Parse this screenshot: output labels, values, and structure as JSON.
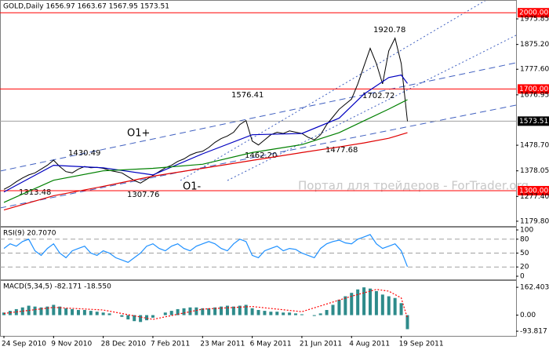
{
  "watermark": "Портал для трейдеров - ForTrader.org",
  "chart_data": [
    {
      "type": "line",
      "title": "GOLD,Daily  1656.97 1663.67 1567.95 1573.51",
      "xlim": [
        -0.63,
        82.5
      ],
      "ylim": [
        1161,
        2050
      ],
      "yticks": [
        1975.85,
        {
          "value": 1875.2,
          "label": "1875.20"
        },
        {
          "value": 1777.6,
          "label": "1777.60"
        },
        1676.95,
        {
          "value": 1478.7,
          "label": "1478.70"
        },
        1378.05,
        {
          "value": 1277.4,
          "label": "1277.40"
        },
        {
          "value": 1179.8,
          "label": "1179.80"
        }
      ],
      "levels": [
        {
          "value": 2000,
          "label": "2000.00",
          "color": "#ff0000"
        },
        {
          "value": 1700,
          "label": "1700.00",
          "color": "#ff0000"
        },
        {
          "value": 1573.51,
          "label": "1573.51",
          "color": "#a0a0a0"
        },
        {
          "value": 1300,
          "label": "1300.00",
          "color": "#ff0000"
        }
      ],
      "annotations": [
        "1920.78",
        "1702.72",
        "1576.41",
        "1462.20",
        "1477.68",
        "1430.49",
        "1313.48",
        "1307.76",
        "O1+",
        "O1-"
      ],
      "series": [
        {
          "color": "#000000",
          "values": [
            1305,
            1318,
            1335,
            1350,
            1362,
            1370,
            1385,
            1400,
            1420,
            1395,
            1375,
            1370,
            1385,
            1395,
            1390,
            1392,
            1388,
            1380,
            1375,
            1370,
            1355,
            1340,
            1330,
            1345,
            1360,
            1375,
            1390,
            1400,
            1415,
            1425,
            1440,
            1450,
            1455,
            1470,
            1490,
            1505,
            1515,
            1530,
            1560,
            1576,
            1495,
            1480,
            1500,
            1520,
            1530,
            1525,
            1535,
            1530,
            1525,
            1510,
            1500,
            1520,
            1560,
            1590,
            1620,
            1640,
            1660,
            1720,
            1790,
            1860,
            1800,
            1720,
            1850,
            1900,
            1800,
            1573
          ]
        },
        {
          "color": "#0000c0",
          "x": [
            0,
            8,
            16,
            24,
            32,
            40,
            48,
            54,
            58,
            62,
            64,
            65
          ],
          "values": [
            1295,
            1400,
            1390,
            1362,
            1445,
            1520,
            1525,
            1585,
            1680,
            1745,
            1755,
            1722
          ]
        },
        {
          "color": "#008000",
          "x": [
            0,
            8,
            16,
            24,
            32,
            40,
            48,
            54,
            58,
            62,
            65
          ],
          "values": [
            1254,
            1341,
            1378,
            1388,
            1404,
            1450,
            1481,
            1528,
            1575,
            1621,
            1658
          ]
        },
        {
          "color": "#e00000",
          "x": [
            0,
            8,
            16,
            24,
            32,
            40,
            48,
            54,
            58,
            62,
            65
          ],
          "values": [
            1224,
            1280,
            1317,
            1357,
            1388,
            1419,
            1450,
            1472,
            1488,
            1506,
            1528
          ]
        }
      ]
    },
    {
      "type": "line",
      "title": "RSI(9) 20.7070",
      "xlim": [
        -0.63,
        82.5
      ],
      "ylim": [
        -6.8,
        106.8
      ],
      "yticks": [
        100,
        80,
        50,
        20,
        0
      ],
      "levels": [
        80,
        50,
        20
      ],
      "series": [
        {
          "color": "#1e90ff",
          "values": [
            60,
            70,
            65,
            75,
            80,
            55,
            45,
            60,
            70,
            50,
            40,
            55,
            60,
            65,
            50,
            45,
            55,
            50,
            40,
            35,
            30,
            40,
            50,
            65,
            70,
            60,
            55,
            65,
            70,
            60,
            55,
            65,
            70,
            75,
            70,
            60,
            55,
            70,
            80,
            75,
            45,
            40,
            55,
            60,
            65,
            55,
            60,
            58,
            50,
            45,
            40,
            60,
            70,
            75,
            78,
            72,
            70,
            80,
            85,
            90,
            70,
            60,
            65,
            70,
            55,
            20.707
          ]
        }
      ]
    },
    {
      "type": "bar",
      "title": "MACD(5,34,5) -82.171 -18.550",
      "xlim": [
        -0.63,
        82.5
      ],
      "ylim": [
        -121,
        204
      ],
      "yticks": [
        162.403,
        {
          "value": 0,
          "label": "0.00"
        },
        -93.817
      ],
      "xticks": [
        {
          "value": 0,
          "label": "24 Sep 2010"
        },
        {
          "value": 8,
          "label": "9 Nov 2010"
        },
        {
          "value": 16,
          "label": "28 Dec 2010"
        },
        {
          "value": 24,
          "label": "7 Feb 2011"
        },
        {
          "value": 32,
          "label": "23 Mar 2011"
        },
        {
          "value": 40,
          "label": "6 May 2011"
        },
        {
          "value": 48,
          "label": "21 Jun 2011"
        },
        {
          "value": 56,
          "label": "4 Aug 2011"
        },
        {
          "value": 64,
          "label": "19 Sep 2011"
        }
      ],
      "series": [
        {
          "type": "bar",
          "color": "#2e8b8b",
          "values": [
            15,
            25,
            35,
            45,
            55,
            50,
            45,
            50,
            60,
            50,
            40,
            35,
            30,
            30,
            25,
            20,
            15,
            10,
            0,
            -10,
            -25,
            -35,
            -40,
            -30,
            -15,
            0,
            15,
            25,
            35,
            40,
            45,
            45,
            40,
            40,
            45,
            50,
            55,
            50,
            55,
            60,
            40,
            30,
            25,
            20,
            20,
            15,
            15,
            10,
            5,
            0,
            -5,
            10,
            30,
            60,
            90,
            110,
            130,
            150,
            162,
            155,
            140,
            120,
            110,
            100,
            70,
            -82
          ]
        },
        {
          "type": "line",
          "dash": true,
          "color": "#ff0000",
          "x": [
            0,
            8,
            16,
            24,
            32,
            40,
            48,
            56,
            60,
            62,
            64,
            65
          ],
          "values": [
            10,
            45,
            30,
            -25,
            35,
            50,
            20,
            110,
            150,
            140,
            100,
            -18.55
          ]
        }
      ]
    }
  ]
}
